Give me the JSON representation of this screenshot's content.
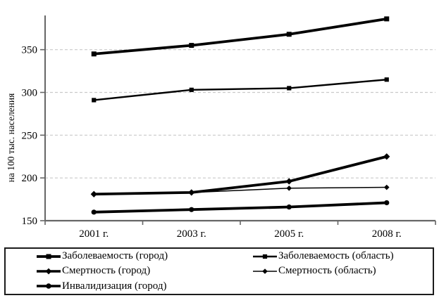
{
  "chart_data": {
    "type": "line",
    "title": "",
    "xlabel": "",
    "ylabel": "на 100 тыс. населения",
    "categories": [
      "2001 г.",
      "2003 г.",
      "2005 г.",
      "2008 г."
    ],
    "y_ticks": [
      150,
      200,
      250,
      300,
      350
    ],
    "ylim": [
      150,
      390
    ],
    "grid": "horizontal dashed gridlines at y ticks",
    "legend_position": "bottom, boxed, two columns",
    "series": [
      {
        "name": "Заболеваемость (город)",
        "marker": "square",
        "line": "thick",
        "values": [
          345,
          355,
          368,
          386
        ]
      },
      {
        "name": "Заболеваемость (область)",
        "marker": "square",
        "line": "medium",
        "values": [
          291,
          303,
          305,
          315
        ]
      },
      {
        "name": "Смертность (город)",
        "marker": "diamond",
        "line": "thick",
        "values": [
          181,
          183,
          196,
          225
        ]
      },
      {
        "name": "Смертность (область)",
        "marker": "diamond",
        "line": "thin",
        "values": [
          181,
          183,
          188,
          189
        ]
      },
      {
        "name": "Инвалидизация (город)",
        "marker": "circle",
        "line": "thick",
        "values": [
          160,
          163,
          166,
          171
        ]
      }
    ],
    "colors": {
      "series_line": "#000000",
      "axis": "#666666",
      "gridline": "#c9c9c9",
      "text": "#000000",
      "background": "#ffffff"
    }
  }
}
